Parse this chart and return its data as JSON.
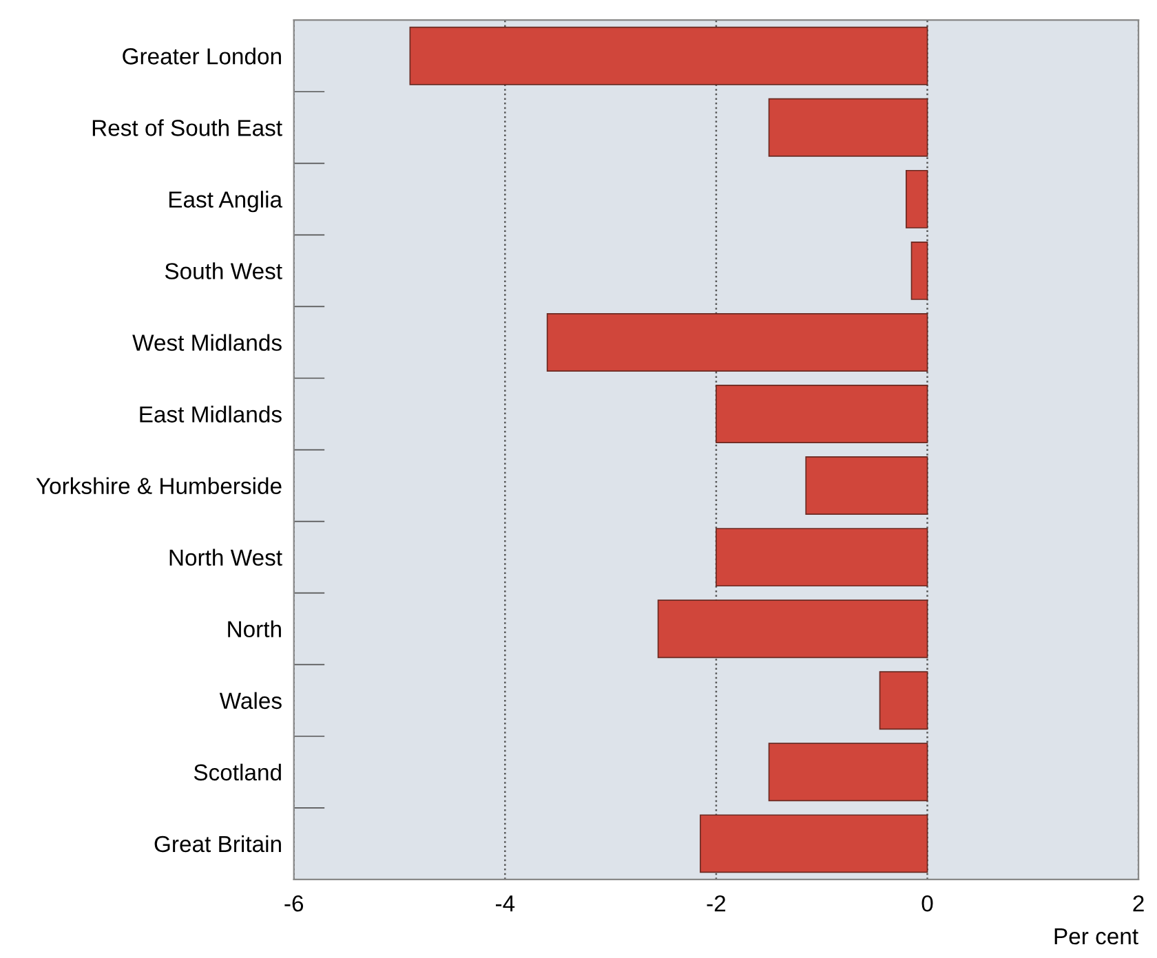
{
  "chart_data": {
    "type": "bar",
    "orientation": "horizontal",
    "xlabel": "Per cent",
    "categories": [
      "Greater London",
      "Rest of South East",
      "East Anglia",
      "South West",
      "West Midlands",
      "East Midlands",
      "Yorkshire & Humberside",
      "North West",
      "North",
      "Wales",
      "Scotland",
      "Great Britain"
    ],
    "values": [
      -4.9,
      -1.5,
      -0.2,
      -0.15,
      -3.6,
      -2.0,
      -1.15,
      -2.0,
      -2.55,
      -0.45,
      -1.5,
      -2.15
    ],
    "color": "#d0463b",
    "xlim": [
      -6,
      2
    ],
    "xticks": [
      -6,
      -4,
      -2,
      0,
      2
    ],
    "grid": "x"
  }
}
